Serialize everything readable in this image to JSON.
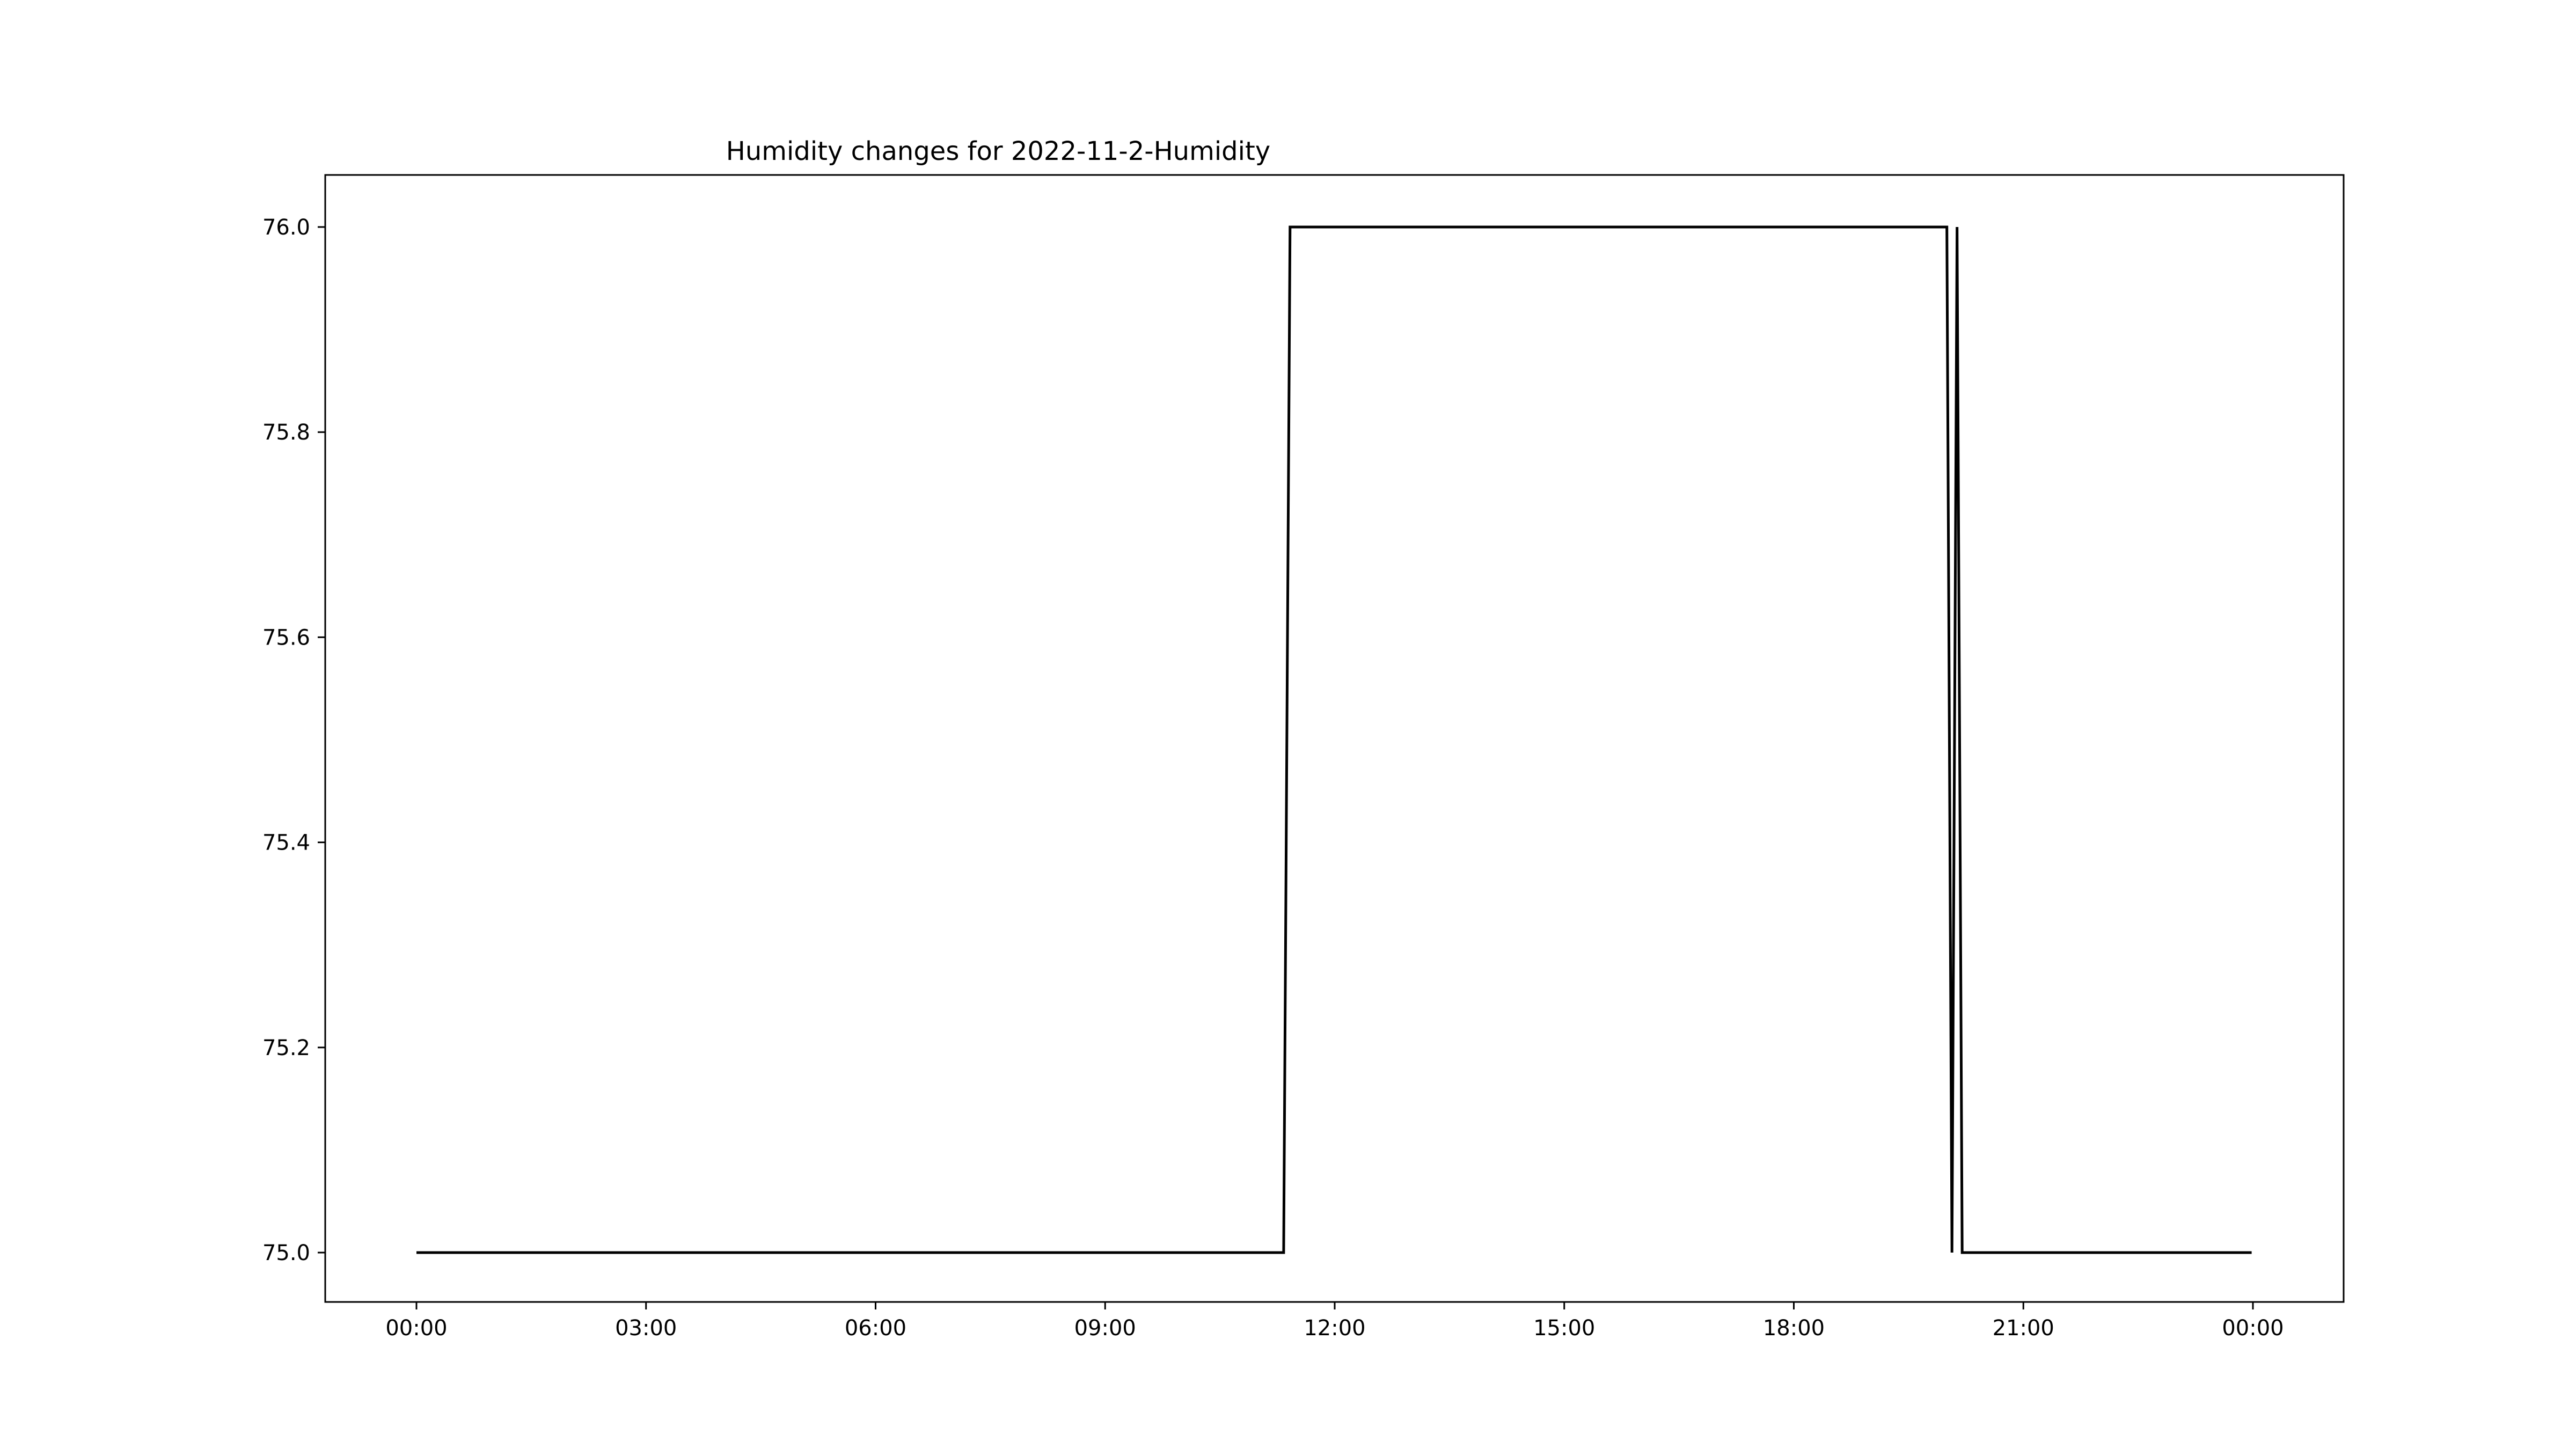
{
  "chart_data": {
    "type": "line",
    "title": "Humidity changes for 2022-11-2-Humidity",
    "xlabel": "",
    "ylabel": "",
    "x_ticks": [
      "00:00",
      "03:00",
      "06:00",
      "09:00",
      "12:00",
      "15:00",
      "18:00",
      "21:00",
      "00:00"
    ],
    "y_ticks": [
      "75.0",
      "75.2",
      "75.4",
      "75.6",
      "75.8",
      "76.0"
    ],
    "ylim": [
      74.95,
      76.05
    ],
    "xlim": [
      "2022-11-02 00:00",
      "2022-11-03 00:00"
    ],
    "grid": false,
    "series": [
      {
        "x": [
          "2022-11-02 00:00",
          "2022-11-02 11:20",
          "2022-11-02 11:25",
          "2022-11-02 20:00",
          "2022-11-02 20:04",
          "2022-11-02 20:08",
          "2022-11-02 20:12",
          "2022-11-02 23:59"
        ],
        "values": [
          75.0,
          75.0,
          76.0,
          76.0,
          75.0,
          76.0,
          75.0,
          75.0
        ],
        "color": "#000000"
      }
    ]
  }
}
